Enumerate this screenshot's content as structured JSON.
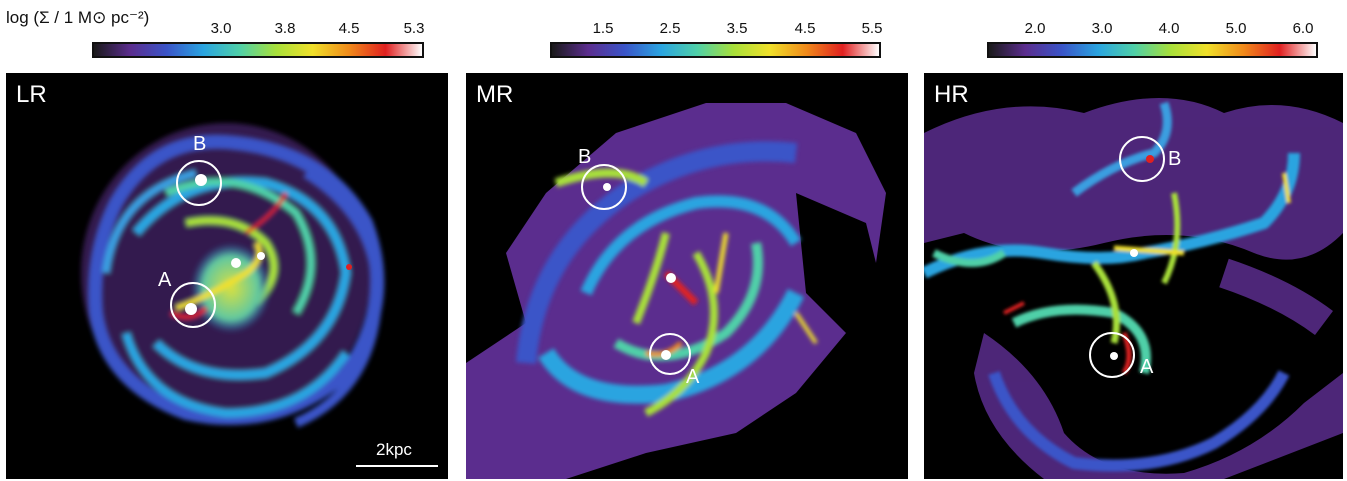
{
  "colorbar_label": "log (Σ / 1 M⊙ pc⁻²)",
  "colorbar_colors": [
    "#1a1a1a",
    "#5b2d8e",
    "#3a54c8",
    "#2aa4e0",
    "#4fd0a8",
    "#a8e03a",
    "#f0e02a",
    "#f08a1a",
    "#e02020",
    "#ffffff"
  ],
  "panels": [
    {
      "label": "LR",
      "ticks": [
        "3.0",
        "3.8",
        "4.5",
        "5.3"
      ],
      "regions": [
        {
          "label": "A"
        },
        {
          "label": "B"
        }
      ],
      "scale_bar": "2kpc"
    },
    {
      "label": "MR",
      "ticks": [
        "1.5",
        "2.5",
        "3.5",
        "4.5",
        "5.5"
      ],
      "regions": [
        {
          "label": "A"
        },
        {
          "label": "B"
        }
      ]
    },
    {
      "label": "HR",
      "ticks": [
        "2.0",
        "3.0",
        "4.0",
        "5.0",
        "6.0"
      ],
      "regions": [
        {
          "label": "A"
        },
        {
          "label": "B"
        }
      ]
    }
  ]
}
